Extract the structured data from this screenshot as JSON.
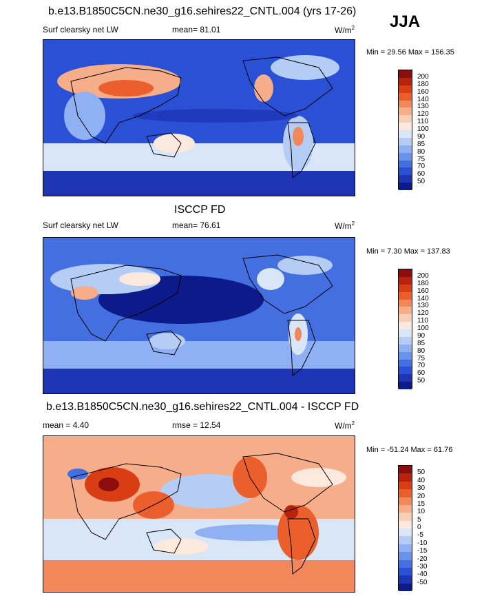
{
  "season": "JJA",
  "panels": [
    {
      "title": "b.e13.B1850C5CN.ne30_g16.sehires22_CNTL.004 (yrs 17-26)",
      "left_label": "Surf clearsky net LW",
      "center_label": "mean=  81.01",
      "units": "W/m",
      "units_sup": "2",
      "minmax": "Min =  29.56 Max = 156.35",
      "cbar_labels": [
        "200",
        "180",
        "160",
        "140",
        "130",
        "120",
        "110",
        "100",
        "90",
        "85",
        "80",
        "75",
        "70",
        "60",
        "50"
      ],
      "cbar_colors": [
        "#8b0d0d",
        "#b8230d",
        "#d83d14",
        "#ea5f2b",
        "#f2875a",
        "#f6ad8a",
        "#f8cfb5",
        "#fae9dc",
        "#d8e6f8",
        "#b5ccf5",
        "#8fb0f2",
        "#6992ec",
        "#436fe0",
        "#2a50d6",
        "#1d34b5",
        "#0c1a8a"
      ]
    },
    {
      "title": "ISCCP FD",
      "left_label": "Surf clearsky net LW",
      "center_label": "mean=  76.61",
      "units": "W/m",
      "units_sup": "2",
      "minmax": "Min =   7.30 Max = 137.83",
      "cbar_labels": [
        "200",
        "180",
        "160",
        "140",
        "130",
        "120",
        "110",
        "100",
        "90",
        "85",
        "80",
        "75",
        "70",
        "60",
        "50"
      ],
      "cbar_colors": [
        "#8b0d0d",
        "#b8230d",
        "#d83d14",
        "#ea5f2b",
        "#f2875a",
        "#f6ad8a",
        "#f8cfb5",
        "#fae9dc",
        "#d8e6f8",
        "#b5ccf5",
        "#8fb0f2",
        "#6992ec",
        "#436fe0",
        "#2a50d6",
        "#1d34b5",
        "#0c1a8a"
      ]
    },
    {
      "title": "b.e13.B1850C5CN.ne30_g16.sehires22_CNTL.004 - ISCCP FD",
      "left_label": "mean =   4.40",
      "center_label": "rmse =  12.54",
      "units": "W/m",
      "units_sup": "2",
      "minmax": "Min = -51.24 Max =  61.76",
      "cbar_labels": [
        "50",
        "40",
        "30",
        "20",
        "15",
        "10",
        "5",
        "0",
        "-5",
        "-10",
        "-15",
        "-20",
        "-30",
        "-40",
        "-50"
      ],
      "cbar_colors": [
        "#8b0d0d",
        "#b8230d",
        "#d83d14",
        "#ea5f2b",
        "#f2875a",
        "#f6ad8a",
        "#f8cfb5",
        "#fae9dc",
        "#d8e6f8",
        "#b5ccf5",
        "#8fb0f2",
        "#6992ec",
        "#436fe0",
        "#2a50d6",
        "#1d34b5",
        "#0c1a8a"
      ]
    }
  ]
}
